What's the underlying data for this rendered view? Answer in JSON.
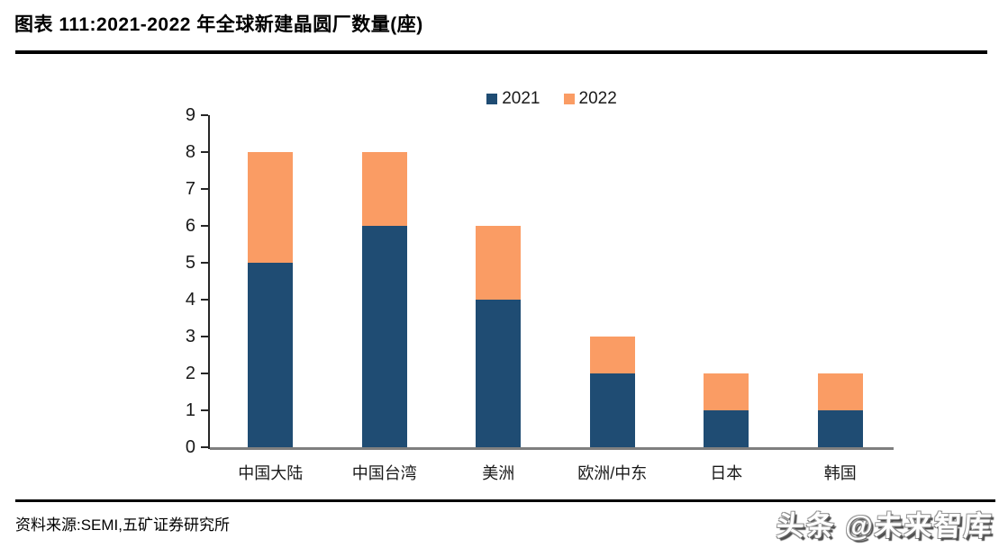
{
  "header": {
    "title": "图表 111:2021-2022 年全球新建晶圆厂数量(座)"
  },
  "footer": {
    "source": "资料来源:SEMI,五矿证券研究所",
    "watermark": "头条 @未来智库"
  },
  "colors": {
    "series_2021": "#1F4C73",
    "series_2022": "#FA9C64",
    "axis_line": "#262626",
    "baseline": "#7F7F7F",
    "text": "#000000"
  },
  "chart_data": {
    "type": "bar",
    "stacked": true,
    "title": "2021-2022 年全球新建晶圆厂数量(座)",
    "categories": [
      "中国大陆",
      "中国台湾",
      "美洲",
      "欧洲/中东",
      "日本",
      "韩国"
    ],
    "series": [
      {
        "name": "2021",
        "color_key": "series_2021",
        "values": [
          5,
          6,
          4,
          2,
          1,
          1
        ]
      },
      {
        "name": "2022",
        "color_key": "series_2022",
        "values": [
          3,
          2,
          2,
          1,
          1,
          1
        ]
      }
    ],
    "totals": [
      8,
      8,
      6,
      3,
      2,
      2
    ],
    "xlabel": "",
    "ylabel": "",
    "ylim": [
      0,
      9
    ],
    "ytick_step": 1,
    "grid": false,
    "legend_position": "top-center"
  }
}
